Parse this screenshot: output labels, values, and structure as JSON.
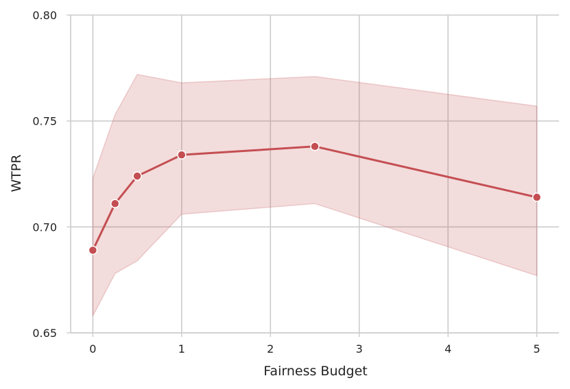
{
  "chart_data": {
    "type": "line",
    "title": "",
    "xlabel": "Fairness Budget",
    "ylabel": "WTPR",
    "xlim": [
      -0.25,
      5.25
    ],
    "ylim": [
      0.65,
      0.8
    ],
    "x_ticks": [
      "0",
      "1",
      "2",
      "3",
      "4",
      "5"
    ],
    "y_ticks": [
      "0.65",
      "0.70",
      "0.75",
      "0.80"
    ],
    "grid": true,
    "legend": "none",
    "series": [
      {
        "color": "#c44e52",
        "x": [
          0,
          0.25,
          0.5,
          1,
          2.5,
          5
        ],
        "values": [
          0.689,
          0.711,
          0.724,
          0.734,
          0.738,
          0.714
        ],
        "ci_lower": [
          0.658,
          0.678,
          0.684,
          0.706,
          0.711,
          0.677
        ],
        "ci_upper": [
          0.723,
          0.753,
          0.772,
          0.768,
          0.771,
          0.757
        ]
      }
    ]
  }
}
